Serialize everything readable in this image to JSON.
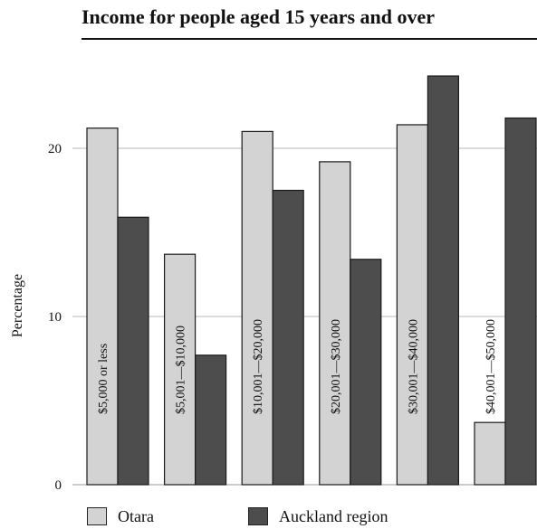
{
  "chart_data": {
    "type": "bar",
    "title": "Income for people aged 15 years and over",
    "xlabel": "",
    "ylabel": "Percentage",
    "ylim": [
      0,
      26
    ],
    "yticks": [
      0,
      10,
      20
    ],
    "grid": true,
    "legend_position": "bottom",
    "categories": [
      "$5,000 or less",
      "$5,001—$10,000",
      "$10,001—$20,000",
      "$20,001—$30,000",
      "$30,001—$40,000",
      "$40,001—$50,000"
    ],
    "series": [
      {
        "name": "Otara",
        "values": [
          21.2,
          13.7,
          21.0,
          19.2,
          21.4,
          3.7
        ]
      },
      {
        "name": "Auckland region",
        "values": [
          15.9,
          7.7,
          17.5,
          13.4,
          24.3,
          21.8
        ]
      }
    ],
    "colors": {
      "Otara": "#d3d3d3",
      "Auckland region": "#4d4d4d",
      "edge": "#1a1a1a",
      "grid": "#bbbbbb"
    }
  }
}
